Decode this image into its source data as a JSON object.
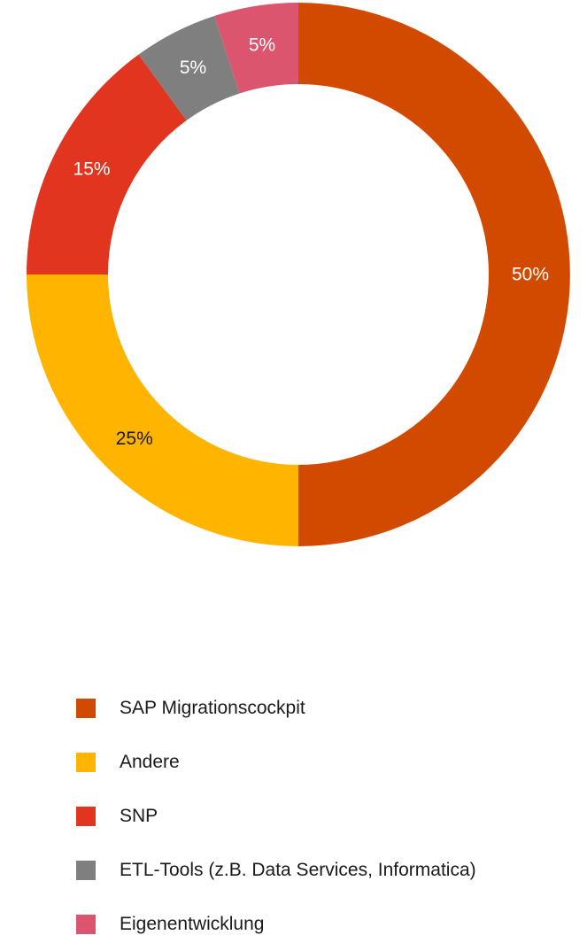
{
  "chart_data": {
    "type": "pie",
    "variant": "donut",
    "categories": [
      "SAP Migrationscockpit",
      "Andere",
      "SNP",
      "ETL-Tools (z.B. Data Services, Informatica)",
      "Eigenentwicklung"
    ],
    "values": [
      50,
      25,
      15,
      5,
      5
    ],
    "value_labels": [
      "50%",
      "25%",
      "15%",
      "5%",
      "5%"
    ],
    "colors": [
      "#D24A00",
      "#FFB400",
      "#E13520",
      "#7F7F7F",
      "#DC556E"
    ],
    "label_colors": [
      "#ffffff",
      "#1a1a1a",
      "#ffffff",
      "#ffffff",
      "#ffffff"
    ],
    "legend_position": "bottom"
  }
}
